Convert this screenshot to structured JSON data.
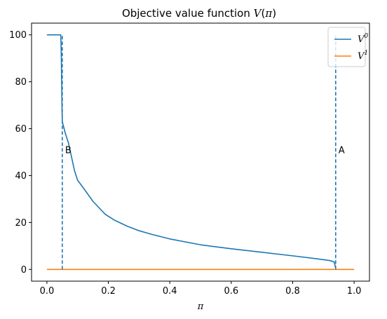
{
  "chart_data": {
    "type": "line",
    "title": "Objective value function V(π)",
    "xlabel": "π",
    "ylabel": "",
    "xlim": [
      -0.05,
      1.05
    ],
    "ylim": [
      -5,
      105
    ],
    "xticks": [
      "0.0",
      "0.2",
      "0.4",
      "0.6",
      "0.8",
      "1.0"
    ],
    "yticks": [
      "0",
      "20",
      "40",
      "60",
      "80",
      "100"
    ],
    "legend_position": "top-right",
    "series": [
      {
        "name": "V⁰",
        "color": "#1f77b4",
        "x": [
          0.0,
          0.045,
          0.046,
          0.047,
          0.048,
          0.049,
          0.05,
          0.06,
          0.07,
          0.08,
          0.09,
          0.1,
          0.12,
          0.15,
          0.19,
          0.22,
          0.26,
          0.3,
          0.34,
          0.4,
          0.5,
          0.6,
          0.7,
          0.8,
          0.88,
          0.92,
          0.935,
          0.94
        ],
        "y": [
          100,
          100,
          96,
          90,
          80,
          70,
          63,
          58,
          54,
          48,
          42,
          38,
          34.5,
          29,
          23.5,
          21,
          18.5,
          16.5,
          15,
          13,
          10.5,
          8.8,
          7.3,
          5.8,
          4.5,
          3.8,
          3.2,
          0.5
        ]
      },
      {
        "name": "V¹",
        "color": "#ff7f0e",
        "x": [
          0.0,
          1.0
        ],
        "y": [
          0,
          0
        ]
      }
    ],
    "vlines": [
      {
        "label": "B",
        "x": 0.05,
        "y_from": 0,
        "y_to": 100,
        "label_y": 51,
        "color": "#1f77b4"
      },
      {
        "label": "A",
        "x": 0.94,
        "y_from": 0,
        "y_to": 100,
        "label_y": 51,
        "color": "#1f77b4"
      }
    ]
  },
  "legend": {
    "v0_base": "V",
    "v0_sup": "0",
    "v1_base": "V",
    "v1_sup": "1"
  },
  "annotations": {
    "b": "B",
    "a": "A"
  }
}
